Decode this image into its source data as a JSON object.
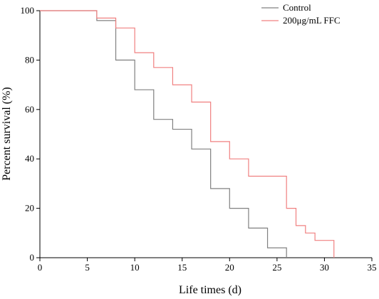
{
  "chart_data": {
    "type": "line",
    "step": true,
    "xlabel": "Life times (d)",
    "ylabel": "Percent survival (%)",
    "xlim": [
      0,
      35
    ],
    "ylim": [
      0,
      100
    ],
    "x_ticks": [
      "0",
      "5",
      "10",
      "15",
      "20",
      "25",
      "30",
      "35"
    ],
    "y_ticks": [
      "0",
      "20",
      "40",
      "60",
      "80",
      "100"
    ],
    "grid": false,
    "legend_position": "top-right",
    "series": [
      {
        "name": "Control",
        "color": "#808080",
        "x": [
          0,
          6,
          8,
          10,
          12,
          14,
          16,
          18,
          20,
          22,
          24,
          26
        ],
        "y": [
          100,
          96,
          80,
          68,
          56,
          52,
          44,
          28,
          20,
          12,
          4,
          0
        ]
      },
      {
        "name": "200μg/mL FFC",
        "color": "#f08080",
        "x": [
          0,
          6,
          8,
          10,
          12,
          14,
          16,
          18,
          20,
          22,
          26,
          27,
          28,
          29,
          31
        ],
        "y": [
          100,
          97,
          93,
          83,
          77,
          70,
          63,
          47,
          40,
          33,
          20,
          13,
          10,
          7,
          0
        ]
      }
    ]
  }
}
